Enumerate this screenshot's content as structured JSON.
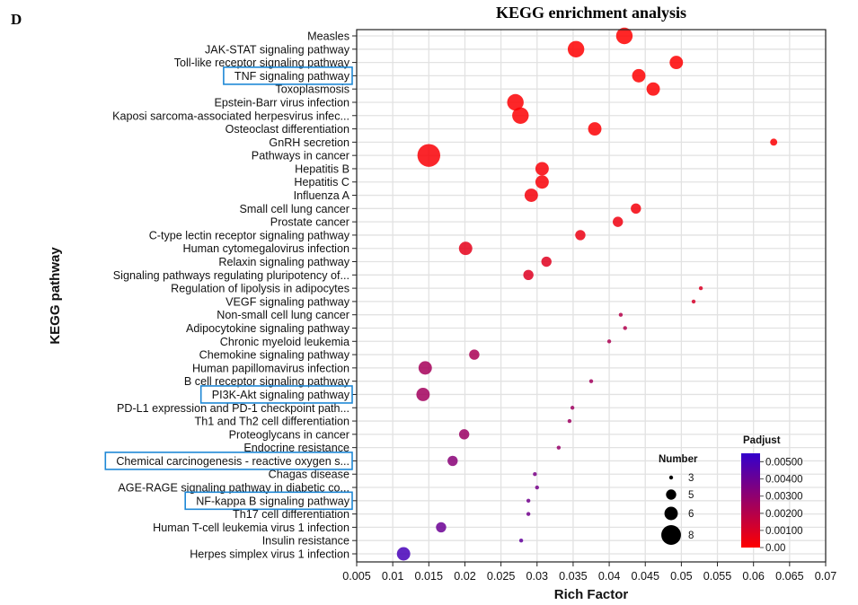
{
  "panel_label": "D",
  "chart_data": {
    "type": "scatter",
    "title": "KEGG enrichment analysis",
    "xlabel": "Rich Factor",
    "ylabel": "KEGG pathway",
    "xlim": [
      0.005,
      0.07
    ],
    "x_ticks": [
      "0.005",
      "0.01",
      "0.015",
      "0.02",
      "0.025",
      "0.03",
      "0.035",
      "0.04",
      "0.045",
      "0.05",
      "0.055",
      "0.06",
      "0.065",
      "0.07"
    ],
    "x_tick_values": [
      0.005,
      0.01,
      0.015,
      0.02,
      0.025,
      0.03,
      0.035,
      0.04,
      0.045,
      0.05,
      0.055,
      0.06,
      0.065,
      0.07
    ],
    "grid": true,
    "highlight_color": "#1e88d6",
    "color_scale": {
      "label": "Padjust",
      "low_color": "#ff0000",
      "high_color": "#3300cc",
      "range": [
        0,
        0.0055
      ],
      "ticks": [
        "0.00500",
        "0.00400",
        "0.00300",
        "0.00200",
        "0.00100",
        "0.00"
      ],
      "tick_values": [
        0.005,
        0.004,
        0.003,
        0.002,
        0.001,
        0.0
      ],
      "placement": "bottom-right"
    },
    "size_legend": {
      "label": "Number",
      "values": [
        3,
        5,
        6,
        8
      ],
      "labels": [
        "3",
        "5",
        "6",
        "8"
      ],
      "placement": "bottom-right"
    },
    "points": [
      {
        "pathway": "Measles",
        "rich_factor": 0.0421,
        "number": 7,
        "padjust": 1e-05,
        "highlighted": false
      },
      {
        "pathway": "JAK-STAT signaling pathway",
        "rich_factor": 0.0354,
        "number": 7,
        "padjust": 2e-05,
        "highlighted": false
      },
      {
        "pathway": "Toll-like receptor signaling pathway",
        "rich_factor": 0.0493,
        "number": 6,
        "padjust": 3e-05,
        "highlighted": false
      },
      {
        "pathway": "TNF signaling pathway",
        "rich_factor": 0.0441,
        "number": 6,
        "padjust": 4e-05,
        "highlighted": true
      },
      {
        "pathway": "Toxoplasmosis",
        "rich_factor": 0.0461,
        "number": 6,
        "padjust": 5e-05,
        "highlighted": false
      },
      {
        "pathway": "Epstein-Barr virus infection",
        "rich_factor": 0.027,
        "number": 7,
        "padjust": 8e-05,
        "highlighted": false
      },
      {
        "pathway": "Kaposi sarcoma-associated herpesvirus infec...",
        "rich_factor": 0.0277,
        "number": 7,
        "padjust": 0.0001,
        "highlighted": false
      },
      {
        "pathway": "Osteoclast differentiation",
        "rich_factor": 0.038,
        "number": 6,
        "padjust": 0.0001,
        "highlighted": false
      },
      {
        "pathway": "GnRH secretion",
        "rich_factor": 0.0628,
        "number": 4,
        "padjust": 0.0001,
        "highlighted": false
      },
      {
        "pathway": "Pathways in cancer",
        "rich_factor": 0.015,
        "number": 9,
        "padjust": 0.00015,
        "highlighted": false
      },
      {
        "pathway": "Hepatitis B",
        "rich_factor": 0.0307,
        "number": 6,
        "padjust": 0.0002,
        "highlighted": false
      },
      {
        "pathway": "Hepatitis C",
        "rich_factor": 0.0307,
        "number": 6,
        "padjust": 0.0002,
        "highlighted": false
      },
      {
        "pathway": "Influenza A",
        "rich_factor": 0.0292,
        "number": 6,
        "padjust": 0.0003,
        "highlighted": false
      },
      {
        "pathway": "Small cell lung cancer",
        "rich_factor": 0.0437,
        "number": 5,
        "padjust": 0.0003,
        "highlighted": false
      },
      {
        "pathway": "Prostate cancer",
        "rich_factor": 0.0412,
        "number": 5,
        "padjust": 0.0004,
        "highlighted": false
      },
      {
        "pathway": "C-type lectin receptor signaling pathway",
        "rich_factor": 0.036,
        "number": 5,
        "padjust": 0.0005,
        "highlighted": false
      },
      {
        "pathway": "Human cytomegalovirus infection",
        "rich_factor": 0.0201,
        "number": 6,
        "padjust": 0.0007,
        "highlighted": false
      },
      {
        "pathway": "Relaxin signaling pathway",
        "rich_factor": 0.0313,
        "number": 5,
        "padjust": 0.0008,
        "highlighted": false
      },
      {
        "pathway": "Signaling pathways regulating pluripotency of...",
        "rich_factor": 0.0288,
        "number": 5,
        "padjust": 0.0009,
        "highlighted": false
      },
      {
        "pathway": "Regulation of lipolysis in adipocytes",
        "rich_factor": 0.0527,
        "number": 3,
        "padjust": 0.001,
        "highlighted": false
      },
      {
        "pathway": "VEGF signaling pathway",
        "rich_factor": 0.0517,
        "number": 3,
        "padjust": 0.0011,
        "highlighted": false
      },
      {
        "pathway": "Non-small cell lung cancer",
        "rich_factor": 0.0416,
        "number": 3,
        "padjust": 0.002,
        "highlighted": false
      },
      {
        "pathway": "Adipocytokine signaling pathway",
        "rich_factor": 0.0422,
        "number": 3,
        "padjust": 0.0021,
        "highlighted": false
      },
      {
        "pathway": "Chronic myeloid leukemia",
        "rich_factor": 0.04,
        "number": 3,
        "padjust": 0.0022,
        "highlighted": false
      },
      {
        "pathway": "Chemokine signaling pathway",
        "rich_factor": 0.0213,
        "number": 5,
        "padjust": 0.0023,
        "highlighted": false
      },
      {
        "pathway": "Human papillomavirus infection",
        "rich_factor": 0.0145,
        "number": 6,
        "padjust": 0.0024,
        "highlighted": false
      },
      {
        "pathway": "B cell receptor signaling pathway",
        "rich_factor": 0.0375,
        "number": 3,
        "padjust": 0.0025,
        "highlighted": false
      },
      {
        "pathway": "PI3K-Akt signaling pathway",
        "rich_factor": 0.0142,
        "number": 6,
        "padjust": 0.0025,
        "highlighted": true
      },
      {
        "pathway": "PD-L1 expression and PD-1 checkpoint path...",
        "rich_factor": 0.0349,
        "number": 3,
        "padjust": 0.0026,
        "highlighted": false
      },
      {
        "pathway": "Th1 and Th2 cell differentiation",
        "rich_factor": 0.0345,
        "number": 3,
        "padjust": 0.0026,
        "highlighted": false
      },
      {
        "pathway": "Proteoglycans in cancer",
        "rich_factor": 0.0199,
        "number": 5,
        "padjust": 0.0027,
        "highlighted": false
      },
      {
        "pathway": "Endocrine resistance",
        "rich_factor": 0.033,
        "number": 3,
        "padjust": 0.0028,
        "highlighted": false
      },
      {
        "pathway": "Chemical carcinogenesis - reactive oxygen s...",
        "rich_factor": 0.0183,
        "number": 5,
        "padjust": 0.0032,
        "highlighted": true
      },
      {
        "pathway": "Chagas disease",
        "rich_factor": 0.0297,
        "number": 3,
        "padjust": 0.0036,
        "highlighted": false
      },
      {
        "pathway": "AGE-RAGE signaling pathway in diabetic co...",
        "rich_factor": 0.03,
        "number": 3,
        "padjust": 0.0037,
        "highlighted": false
      },
      {
        "pathway": "NF-kappa B signaling pathway",
        "rich_factor": 0.0288,
        "number": 3,
        "padjust": 0.0038,
        "highlighted": true
      },
      {
        "pathway": "Th17 cell differentiation",
        "rich_factor": 0.0288,
        "number": 3,
        "padjust": 0.0038,
        "highlighted": false
      },
      {
        "pathway": "Human T-cell leukemia virus 1 infection",
        "rich_factor": 0.0167,
        "number": 5,
        "padjust": 0.004,
        "highlighted": false
      },
      {
        "pathway": "Insulin resistance",
        "rich_factor": 0.0278,
        "number": 3,
        "padjust": 0.0042,
        "highlighted": false
      },
      {
        "pathway": "Herpes simplex virus 1 infection",
        "rich_factor": 0.0115,
        "number": 6,
        "padjust": 0.005,
        "highlighted": false
      }
    ]
  }
}
